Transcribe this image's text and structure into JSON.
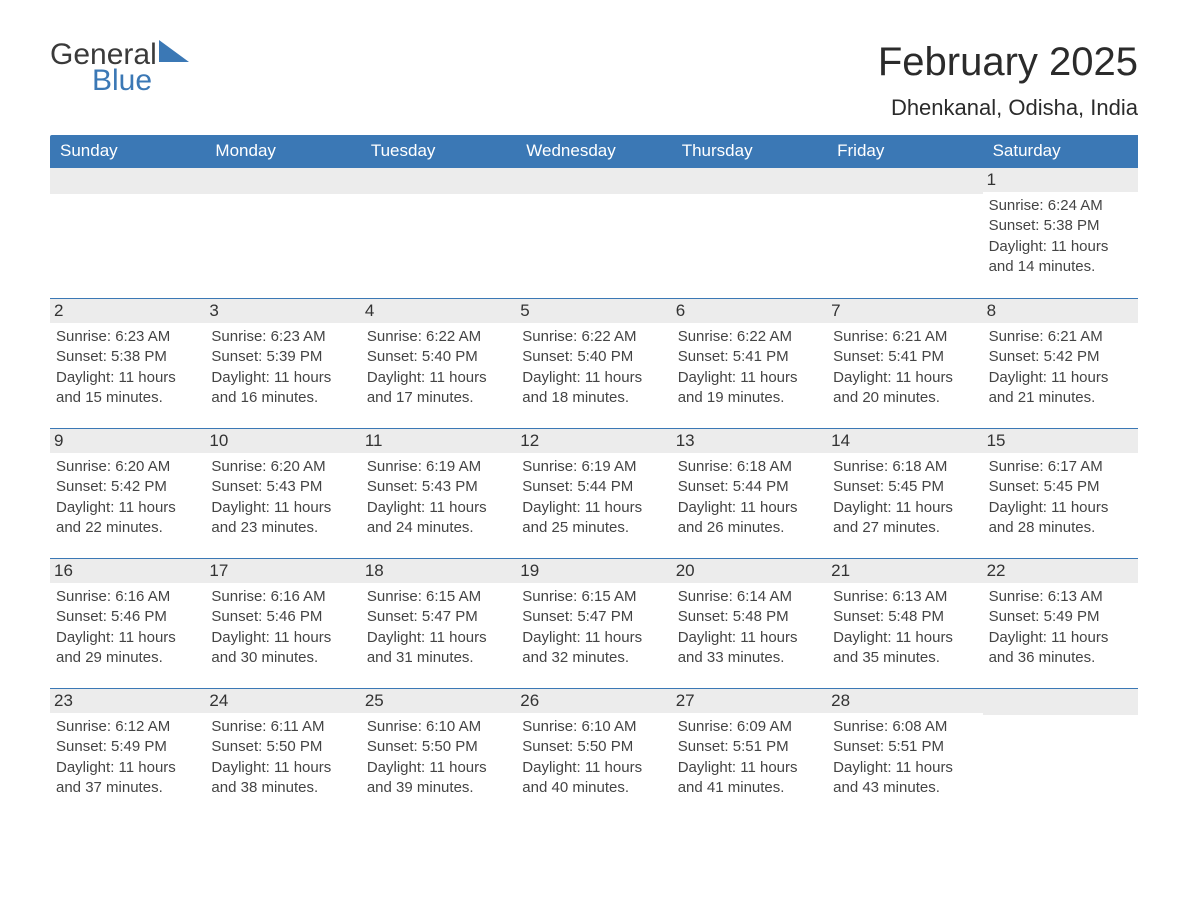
{
  "brand": {
    "name1": "General",
    "name2": "Blue"
  },
  "title": "February 2025",
  "location": "Dhenkanal, Odisha, India",
  "colors": {
    "accent": "#3b78b5",
    "header_text": "#ffffff",
    "daynum_bg": "#ececec",
    "text": "#333333",
    "page_bg": "#ffffff"
  },
  "days_of_week": [
    "Sunday",
    "Monday",
    "Tuesday",
    "Wednesday",
    "Thursday",
    "Friday",
    "Saturday"
  ],
  "grid": {
    "leading_empty": 6,
    "trailing_empty": 1
  },
  "labels": {
    "sunrise": "Sunrise:",
    "sunset": "Sunset:",
    "daylight": "Daylight:"
  },
  "days": [
    {
      "n": 1,
      "sunrise": "6:24 AM",
      "sunset": "5:38 PM",
      "daylight": "11 hours and 14 minutes."
    },
    {
      "n": 2,
      "sunrise": "6:23 AM",
      "sunset": "5:38 PM",
      "daylight": "11 hours and 15 minutes."
    },
    {
      "n": 3,
      "sunrise": "6:23 AM",
      "sunset": "5:39 PM",
      "daylight": "11 hours and 16 minutes."
    },
    {
      "n": 4,
      "sunrise": "6:22 AM",
      "sunset": "5:40 PM",
      "daylight": "11 hours and 17 minutes."
    },
    {
      "n": 5,
      "sunrise": "6:22 AM",
      "sunset": "5:40 PM",
      "daylight": "11 hours and 18 minutes."
    },
    {
      "n": 6,
      "sunrise": "6:22 AM",
      "sunset": "5:41 PM",
      "daylight": "11 hours and 19 minutes."
    },
    {
      "n": 7,
      "sunrise": "6:21 AM",
      "sunset": "5:41 PM",
      "daylight": "11 hours and 20 minutes."
    },
    {
      "n": 8,
      "sunrise": "6:21 AM",
      "sunset": "5:42 PM",
      "daylight": "11 hours and 21 minutes."
    },
    {
      "n": 9,
      "sunrise": "6:20 AM",
      "sunset": "5:42 PM",
      "daylight": "11 hours and 22 minutes."
    },
    {
      "n": 10,
      "sunrise": "6:20 AM",
      "sunset": "5:43 PM",
      "daylight": "11 hours and 23 minutes."
    },
    {
      "n": 11,
      "sunrise": "6:19 AM",
      "sunset": "5:43 PM",
      "daylight": "11 hours and 24 minutes."
    },
    {
      "n": 12,
      "sunrise": "6:19 AM",
      "sunset": "5:44 PM",
      "daylight": "11 hours and 25 minutes."
    },
    {
      "n": 13,
      "sunrise": "6:18 AM",
      "sunset": "5:44 PM",
      "daylight": "11 hours and 26 minutes."
    },
    {
      "n": 14,
      "sunrise": "6:18 AM",
      "sunset": "5:45 PM",
      "daylight": "11 hours and 27 minutes."
    },
    {
      "n": 15,
      "sunrise": "6:17 AM",
      "sunset": "5:45 PM",
      "daylight": "11 hours and 28 minutes."
    },
    {
      "n": 16,
      "sunrise": "6:16 AM",
      "sunset": "5:46 PM",
      "daylight": "11 hours and 29 minutes."
    },
    {
      "n": 17,
      "sunrise": "6:16 AM",
      "sunset": "5:46 PM",
      "daylight": "11 hours and 30 minutes."
    },
    {
      "n": 18,
      "sunrise": "6:15 AM",
      "sunset": "5:47 PM",
      "daylight": "11 hours and 31 minutes."
    },
    {
      "n": 19,
      "sunrise": "6:15 AM",
      "sunset": "5:47 PM",
      "daylight": "11 hours and 32 minutes."
    },
    {
      "n": 20,
      "sunrise": "6:14 AM",
      "sunset": "5:48 PM",
      "daylight": "11 hours and 33 minutes."
    },
    {
      "n": 21,
      "sunrise": "6:13 AM",
      "sunset": "5:48 PM",
      "daylight": "11 hours and 35 minutes."
    },
    {
      "n": 22,
      "sunrise": "6:13 AM",
      "sunset": "5:49 PM",
      "daylight": "11 hours and 36 minutes."
    },
    {
      "n": 23,
      "sunrise": "6:12 AM",
      "sunset": "5:49 PM",
      "daylight": "11 hours and 37 minutes."
    },
    {
      "n": 24,
      "sunrise": "6:11 AM",
      "sunset": "5:50 PM",
      "daylight": "11 hours and 38 minutes."
    },
    {
      "n": 25,
      "sunrise": "6:10 AM",
      "sunset": "5:50 PM",
      "daylight": "11 hours and 39 minutes."
    },
    {
      "n": 26,
      "sunrise": "6:10 AM",
      "sunset": "5:50 PM",
      "daylight": "11 hours and 40 minutes."
    },
    {
      "n": 27,
      "sunrise": "6:09 AM",
      "sunset": "5:51 PM",
      "daylight": "11 hours and 41 minutes."
    },
    {
      "n": 28,
      "sunrise": "6:08 AM",
      "sunset": "5:51 PM",
      "daylight": "11 hours and 43 minutes."
    }
  ]
}
